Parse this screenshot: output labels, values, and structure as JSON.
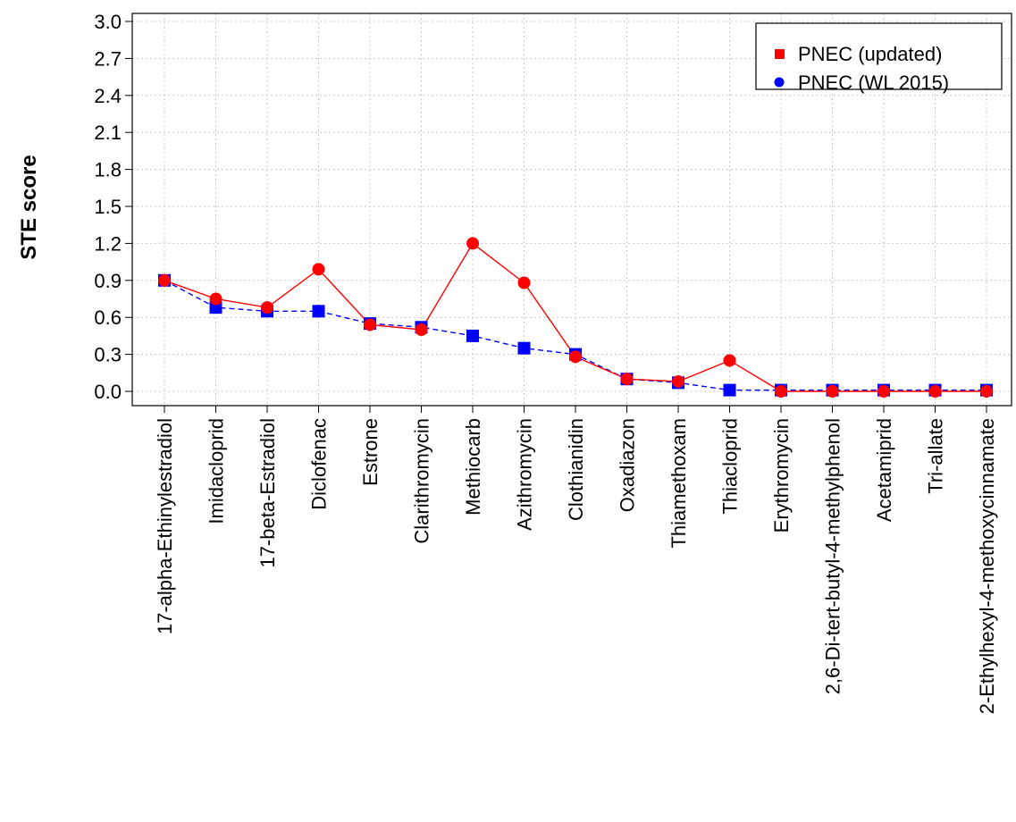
{
  "chart_data": {
    "type": "line",
    "ylabel": "STE score",
    "xlabel": "",
    "ylim": [
      0,
      3.0
    ],
    "yticks": [
      "0.0",
      "0.3",
      "0.6",
      "0.9",
      "1.2",
      "1.5",
      "1.8",
      "2.1",
      "2.4",
      "2.7",
      "3.0"
    ],
    "grid": true,
    "legend_position": "top-right",
    "categories": [
      "17-alpha-Ethinylestradiol",
      "Imidacloprid",
      "17-beta-Estradiol",
      "Diclofenac",
      "Estrone",
      "Clarithromycin",
      "Methiocarb",
      "Azithromycin",
      "Clothianidin",
      "Oxadiazon",
      "Thiamethoxam",
      "Thiacloprid",
      "Erythromycin",
      "2,6-Di-tert-butyl-4-methylphenol",
      "Acetamiprid",
      "Tri-allate",
      "2-Ethylhexyl-4-methoxycinnamate"
    ],
    "series": [
      {
        "name": "PNEC (updated)",
        "color": "#ff0000",
        "marker": "square",
        "line": "solid",
        "values": [
          0.9,
          0.75,
          0.68,
          0.99,
          0.54,
          0.5,
          1.2,
          0.88,
          0.28,
          0.1,
          0.08,
          0.25,
          0.0,
          0.0,
          0.0,
          0.0,
          0.0
        ]
      },
      {
        "name": "PNEC (WL 2015)",
        "color": "#0000ff",
        "marker": "circle",
        "line": "dashed",
        "values": [
          0.9,
          0.68,
          0.65,
          0.65,
          0.55,
          0.52,
          0.45,
          0.35,
          0.3,
          0.1,
          0.07,
          0.01,
          0.01,
          0.01,
          0.01,
          0.01,
          0.01
        ]
      }
    ]
  }
}
